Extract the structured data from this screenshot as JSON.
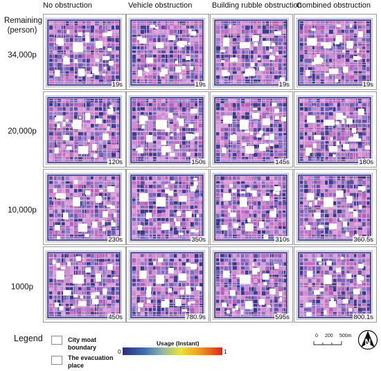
{
  "columns": [
    {
      "title": "No obstruction"
    },
    {
      "title": "Vehicle obstruction"
    },
    {
      "title": "Building rubble obstruction"
    },
    {
      "title": "Combined obstruction"
    }
  ],
  "row_header": {
    "line1": "Remaining",
    "line2": "(person)"
  },
  "rows": [
    {
      "label": "34,000p",
      "times": [
        "19s",
        "19s",
        "19s",
        "19s"
      ]
    },
    {
      "label": "20,000p",
      "times": [
        "120s",
        "150s",
        "145s",
        "180s"
      ]
    },
    {
      "label": "10,000p",
      "times": [
        "230s",
        "350s",
        "310s",
        "360.5s"
      ]
    },
    {
      "label": "1000p",
      "times": [
        "450s",
        "780.9s",
        "595s",
        "800.1s"
      ]
    }
  ],
  "legend": {
    "title": "Legend",
    "moat": {
      "line1": "City moat",
      "line2": "boundary"
    },
    "evac": {
      "line1": "The evacuation",
      "line2": "place"
    },
    "usage_title": "Usage (Instant)",
    "min": "0",
    "max": "1"
  },
  "scale": {
    "l0": "0",
    "l1": "200",
    "l2": "500m"
  },
  "north": "N",
  "colors": {
    "low": "#2a2f7a",
    "mid": "#e8e23a",
    "high": "#d8281e",
    "road": "#b060b8"
  }
}
